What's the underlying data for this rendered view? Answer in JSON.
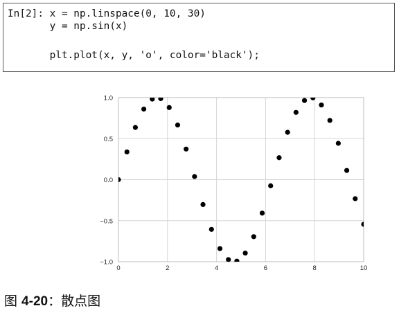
{
  "code_cell": {
    "prompt_line": "In[2]: x = np.linspace(0, 10, 30)",
    "line2": "       y = np.sin(x)",
    "line3": "",
    "line4": "       plt.plot(x, y, 'o', color='black');"
  },
  "caption": {
    "prefix": "图 ",
    "number": "4-20",
    "separator": "：",
    "title": "散点图"
  },
  "colors": {
    "marker": "#000000",
    "grid": "#d6d6d6",
    "axes_border": "#bbbbbb",
    "tick_label": "#222222",
    "code_border": "#555555"
  },
  "chart_data": {
    "type": "scatter",
    "title": "",
    "xlabel": "",
    "ylabel": "",
    "xlim": [
      0,
      10
    ],
    "ylim": [
      -1.0,
      1.0
    ],
    "grid": true,
    "x_ticks": [
      0,
      2,
      4,
      6,
      8,
      10
    ],
    "x_tick_labels": [
      "0",
      "2",
      "4",
      "6",
      "8",
      "10"
    ],
    "y_ticks": [
      -1.0,
      -0.5,
      0.0,
      0.5,
      1.0
    ],
    "y_tick_labels": [
      "−1.0",
      "−0.5",
      "0.0",
      "0.5",
      "1.0"
    ],
    "series": [
      {
        "marker": "o",
        "color": "black",
        "x": [
          0,
          0.345,
          0.69,
          1.034,
          1.379,
          1.724,
          2.069,
          2.414,
          2.759,
          3.103,
          3.448,
          3.793,
          4.138,
          4.483,
          4.828,
          5.172,
          5.517,
          5.862,
          6.207,
          6.552,
          6.897,
          7.241,
          7.586,
          7.931,
          8.276,
          8.621,
          8.966,
          9.31,
          9.655,
          10
        ],
        "y": [
          0.0,
          0.338,
          0.636,
          0.86,
          0.982,
          0.988,
          0.879,
          0.666,
          0.373,
          0.038,
          -0.303,
          -0.606,
          -0.84,
          -0.974,
          -0.993,
          -0.895,
          -0.695,
          -0.408,
          -0.075,
          0.268,
          0.577,
          0.82,
          0.965,
          0.997,
          0.91,
          0.722,
          0.443,
          0.112,
          -0.232,
          -0.544
        ]
      }
    ]
  }
}
